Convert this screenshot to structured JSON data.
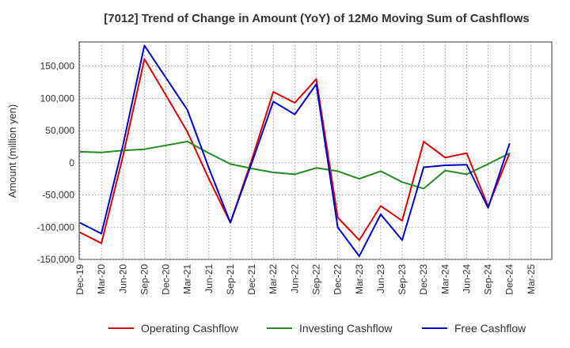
{
  "chart_data": {
    "type": "line",
    "title": "[7012]  Trend of Change in Amount (YoY) of 12Mo Moving Sum of Cashflows",
    "xlabel": "",
    "ylabel": "Amount (million yen)",
    "ylim": [
      -150000,
      187500
    ],
    "yticks": [
      150000,
      100000,
      50000,
      0,
      -50000,
      -100000,
      -150000
    ],
    "ytick_labels": [
      "150,000",
      "100,000",
      "50,000",
      "0",
      "-50,000",
      "-100,000",
      "-150,000"
    ],
    "categories": [
      "Dec-19",
      "Mar-20",
      "Jun-20",
      "Sep-20",
      "Dec-20",
      "Mar-21",
      "Jun-21",
      "Sep-21",
      "Dec-21",
      "Mar-22",
      "Jun-22",
      "Sep-22",
      "Dec-22",
      "Mar-23",
      "Jun-23",
      "Sep-23",
      "Dec-23",
      "Mar-24",
      "Jun-24",
      "Sep-24",
      "Dec-24",
      "Mar-25"
    ],
    "grid": true,
    "legend_position": "bottom",
    "series": [
      {
        "name": "Operating Cashflow",
        "color": "#dd0000",
        "values": [
          -108000,
          -125000,
          10000,
          161000,
          105000,
          48000,
          -25000,
          -93000,
          5000,
          110000,
          93000,
          130000,
          -85000,
          -120000,
          -67000,
          -90000,
          33000,
          8000,
          15000,
          -68000,
          15000,
          null
        ]
      },
      {
        "name": "Investing Cashflow",
        "color": "#228b22",
        "values": [
          17000,
          16000,
          19000,
          21000,
          27000,
          33000,
          15000,
          -2000,
          -9000,
          -15000,
          -18000,
          -8000,
          -13000,
          -25000,
          -13000,
          -30000,
          -40000,
          -12000,
          -18000,
          -2000,
          15000,
          null
        ]
      },
      {
        "name": "Free Cashflow",
        "color": "#0000cc",
        "values": [
          -93000,
          -110000,
          27000,
          182000,
          132000,
          82000,
          -8000,
          -93000,
          0,
          95000,
          75000,
          122000,
          -100000,
          -145000,
          -80000,
          -120000,
          -7000,
          -4000,
          -3000,
          -70000,
          30000,
          null
        ]
      }
    ]
  }
}
